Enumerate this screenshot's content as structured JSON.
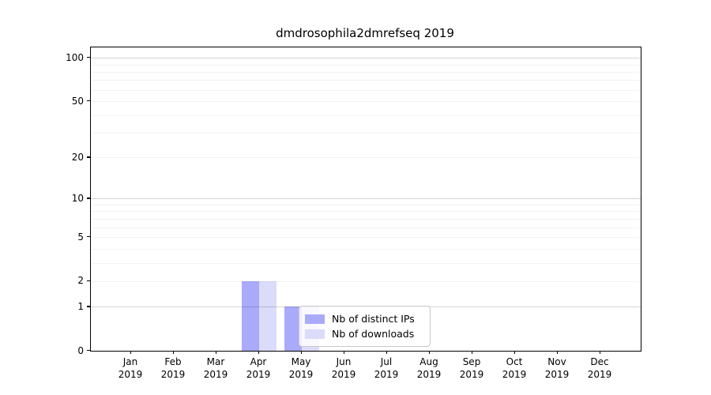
{
  "title": "dmdrosophila2dmrefseq 2019",
  "chart_data": {
    "type": "bar",
    "categories": [
      "Jan",
      "Feb",
      "Mar",
      "Apr",
      "May",
      "Jun",
      "Jul",
      "Aug",
      "Sep",
      "Oct",
      "Nov",
      "Dec"
    ],
    "category_year": "2019",
    "series": [
      {
        "name": "Nb of distinct IPs",
        "color": "#aaaafa",
        "values": [
          0,
          0,
          0,
          2,
          1,
          0,
          0,
          0,
          0,
          0,
          0,
          0
        ]
      },
      {
        "name": "Nb of downloads",
        "color": "#dbdbfa",
        "values": [
          0,
          0,
          0,
          2,
          1,
          0,
          0,
          0,
          0,
          0,
          0,
          0
        ]
      }
    ],
    "y_scale": "log1p",
    "y_ticks": [
      0,
      1,
      2,
      5,
      10,
      20,
      50,
      100
    ],
    "ylim": [
      0,
      118
    ],
    "grid_major": [
      1,
      10,
      100
    ],
    "grid_minor": [
      2,
      3,
      4,
      5,
      6,
      7,
      8,
      9,
      20,
      30,
      40,
      50,
      60,
      70,
      80,
      90
    ],
    "legend_position": "lower center",
    "xlabel": "",
    "ylabel": ""
  }
}
